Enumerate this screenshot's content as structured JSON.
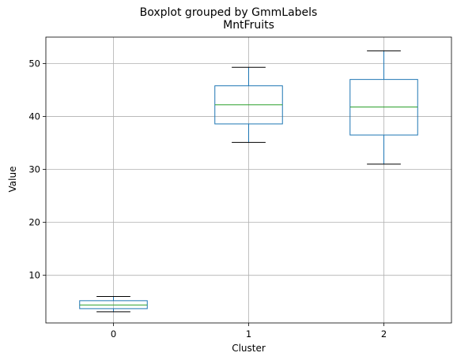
{
  "chart_data": {
    "type": "box",
    "suptitle": "Boxplot grouped by GmmLabels",
    "title": "MntFruits",
    "xlabel": "Cluster",
    "ylabel": "Value",
    "categories": [
      "0",
      "1",
      "2"
    ],
    "boxes": [
      {
        "category": "0",
        "whisker_low": 3.1,
        "q1": 3.7,
        "median": 4.4,
        "q3": 5.2,
        "whisker_high": 6.0
      },
      {
        "category": "1",
        "whisker_low": 35.1,
        "q1": 38.6,
        "median": 42.2,
        "q3": 45.8,
        "whisker_high": 49.3
      },
      {
        "category": "2",
        "whisker_low": 31.0,
        "q1": 36.5,
        "median": 41.8,
        "q3": 47.0,
        "whisker_high": 52.4
      }
    ],
    "ylim": [
      1,
      55
    ],
    "yticks": [
      10,
      20,
      30,
      40,
      50
    ],
    "grid": true,
    "colors": {
      "box": "#1f77b4",
      "median": "#2ca02c",
      "whisker": "#000000",
      "grid": "#b0b0b0"
    }
  }
}
